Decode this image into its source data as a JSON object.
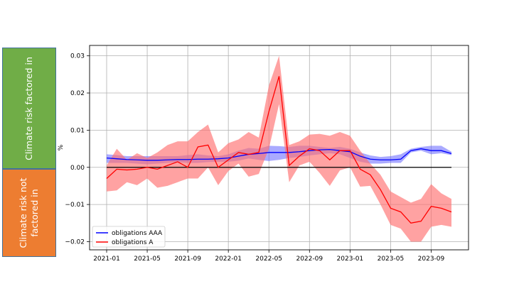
{
  "side_labels": {
    "top": "Climate risk factored in",
    "bottom_line1": "Climate risk not",
    "bottom_line2": "factored in"
  },
  "colors": {
    "top_box": "#70ad47",
    "bottom_box": "#ed7d31",
    "aaa_line": "#0000ff",
    "aaa_band": "#6464ff",
    "a_line": "#ff0000",
    "a_band": "#ff7070"
  },
  "chart_data": {
    "type": "line",
    "ylabel": "%",
    "ylim": [
      -0.0222,
      0.0328
    ],
    "grid": true,
    "legend_placement": "lower-left",
    "zero_line": true,
    "x_ticks": [
      "2021-01",
      "2021-05",
      "2021-09",
      "2022-01",
      "2022-05",
      "2022-09",
      "2023-01",
      "2023-05",
      "2023-09"
    ],
    "y_ticks": [
      "0.03",
      "0.02",
      "0.01",
      "0.00",
      "−0.01",
      "−0.02"
    ],
    "y_tick_values": [
      0.03,
      0.02,
      0.01,
      0.0,
      -0.01,
      -0.02
    ],
    "x": [
      "2021-01",
      "2021-02",
      "2021-03",
      "2021-04",
      "2021-05",
      "2021-06",
      "2021-07",
      "2021-08",
      "2021-09",
      "2021-10",
      "2021-11",
      "2021-12",
      "2022-01",
      "2022-02",
      "2022-03",
      "2022-04",
      "2022-05",
      "2022-06",
      "2022-07",
      "2022-08",
      "2022-09",
      "2022-10",
      "2022-11",
      "2022-12",
      "2023-01",
      "2023-02",
      "2023-03",
      "2023-04",
      "2023-05",
      "2023-06",
      "2023-07",
      "2023-08",
      "2023-09",
      "2023-10",
      "2023-11"
    ],
    "series": [
      {
        "name": "obligations AAA",
        "values": [
          0.0025,
          0.0023,
          0.0021,
          0.002,
          0.0019,
          0.0019,
          0.002,
          0.0021,
          0.0021,
          0.0022,
          0.0022,
          0.0023,
          0.0025,
          0.003,
          0.0035,
          0.0037,
          0.004,
          0.004,
          0.004,
          0.0042,
          0.0045,
          0.0047,
          0.0048,
          0.0045,
          0.0042,
          0.003,
          0.0022,
          0.002,
          0.002,
          0.0022,
          0.0045,
          0.005,
          0.0045,
          0.0045,
          0.0037
        ],
        "lower": [
          0.0012,
          0.0012,
          0.0012,
          0.001,
          0.0008,
          0.001,
          0.0012,
          0.0014,
          0.0012,
          0.0012,
          0.0014,
          0.0015,
          0.0015,
          0.0018,
          0.0024,
          0.002,
          0.0017,
          0.002,
          0.0025,
          0.0028,
          0.0032,
          0.0035,
          0.0038,
          0.0035,
          0.0025,
          0.0015,
          0.001,
          0.001,
          0.0012,
          0.0012,
          0.004,
          0.0045,
          0.0035,
          0.0038,
          0.0033
        ],
        "upper": [
          0.0035,
          0.0033,
          0.003,
          0.003,
          0.003,
          0.003,
          0.003,
          0.003,
          0.0033,
          0.0035,
          0.0032,
          0.003,
          0.0035,
          0.0045,
          0.0052,
          0.005,
          0.0058,
          0.0057,
          0.0055,
          0.0058,
          0.0058,
          0.0055,
          0.0052,
          0.0055,
          0.005,
          0.004,
          0.0032,
          0.0028,
          0.003,
          0.0035,
          0.005,
          0.0055,
          0.0058,
          0.0058,
          0.0042
        ]
      },
      {
        "name": "obligations A",
        "values": [
          -0.003,
          -0.0005,
          -0.0007,
          -0.0005,
          0.0,
          -0.0005,
          0.0005,
          0.0015,
          0.0,
          0.0055,
          0.006,
          0.0,
          0.002,
          0.004,
          0.0035,
          0.004,
          0.015,
          0.0245,
          0.0005,
          0.003,
          0.005,
          0.0045,
          0.002,
          0.0045,
          0.0045,
          -0.0005,
          -0.002,
          -0.006,
          -0.011,
          -0.012,
          -0.015,
          -0.0145,
          -0.0105,
          -0.011,
          -0.012
        ],
        "lower": [
          -0.0065,
          -0.0062,
          -0.004,
          -0.0048,
          -0.003,
          -0.0055,
          -0.005,
          -0.004,
          -0.003,
          -0.003,
          0.0,
          -0.0048,
          -0.001,
          0.001,
          -0.0025,
          -0.0018,
          0.005,
          0.017,
          -0.004,
          0.0005,
          0.0015,
          -0.0015,
          -0.005,
          -0.0008,
          0.0,
          -0.0052,
          -0.005,
          -0.01,
          -0.0155,
          -0.0165,
          -0.02,
          -0.02,
          -0.016,
          -0.0155,
          -0.016
        ],
        "upper": [
          0.0005,
          0.005,
          0.002,
          0.0038,
          0.0025,
          0.004,
          0.006,
          0.007,
          0.007,
          0.0095,
          0.0115,
          0.004,
          0.0065,
          0.0075,
          0.0095,
          0.008,
          0.022,
          0.03,
          0.006,
          0.007,
          0.0088,
          0.009,
          0.0085,
          0.0095,
          0.0085,
          0.0045,
          0.001,
          -0.002,
          -0.0065,
          -0.008,
          -0.0095,
          -0.0085,
          -0.0045,
          -0.007,
          -0.0085
        ]
      }
    ]
  }
}
